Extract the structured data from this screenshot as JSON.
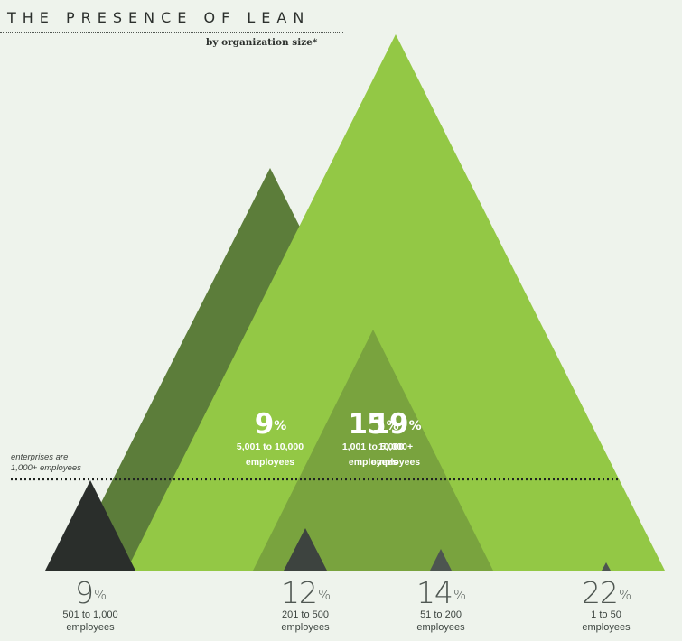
{
  "title": "THE PRESENCE OF LEAN",
  "subtitle": "by organization size*",
  "threshold_note": "enterprises are\n1,000+ employees",
  "chart_data": {
    "type": "area",
    "title": "THE PRESENCE OF LEAN",
    "subtitle": "by organization size*",
    "unit": "%",
    "categories": [
      "501 to 1,000 employees",
      "5,001 to 10,000 employees",
      "201 to 500 employees",
      "1,001 to 5,000 employees",
      "51 to 200 employees",
      "10,000+ employees",
      "1 to 50 employees"
    ],
    "values": [
      9,
      9,
      12,
      15,
      14,
      19,
      22
    ],
    "marks": [
      {
        "value": 9,
        "label_value": "9",
        "unit": "%",
        "caption": "5,001 to 10,000",
        "caption2": "employees",
        "color": "#5c7d3a",
        "label_style": "inside"
      },
      {
        "value": 19,
        "label_value": "19",
        "unit": "%",
        "caption": "10,000+",
        "caption2": "employees",
        "color": "#93c845",
        "label_style": "inside"
      },
      {
        "value": 15,
        "label_value": "15",
        "unit": "%",
        "caption": "1,001 to 5,000",
        "caption2": "employees",
        "color": "#79a33e",
        "label_style": "inside"
      },
      {
        "value": 9,
        "label_value": "9",
        "unit": "%",
        "caption": "501 to 1,000",
        "caption2": "employees",
        "color": "#2a2e2b",
        "label_style": "below"
      },
      {
        "value": 12,
        "label_value": "12",
        "unit": "%",
        "caption": "201 to 500",
        "caption2": "employees",
        "color": "#3d433f",
        "label_style": "below"
      },
      {
        "value": 14,
        "label_value": "14",
        "unit": "%",
        "caption": "51 to 200",
        "caption2": "employees",
        "color": "#4d5550",
        "label_style": "below"
      },
      {
        "value": 22,
        "label_value": "22",
        "unit": "%",
        "caption": "1 to 50",
        "caption2": "employees",
        "color": "#4d5550",
        "label_style": "below"
      }
    ],
    "grid": false,
    "legend": "none"
  }
}
